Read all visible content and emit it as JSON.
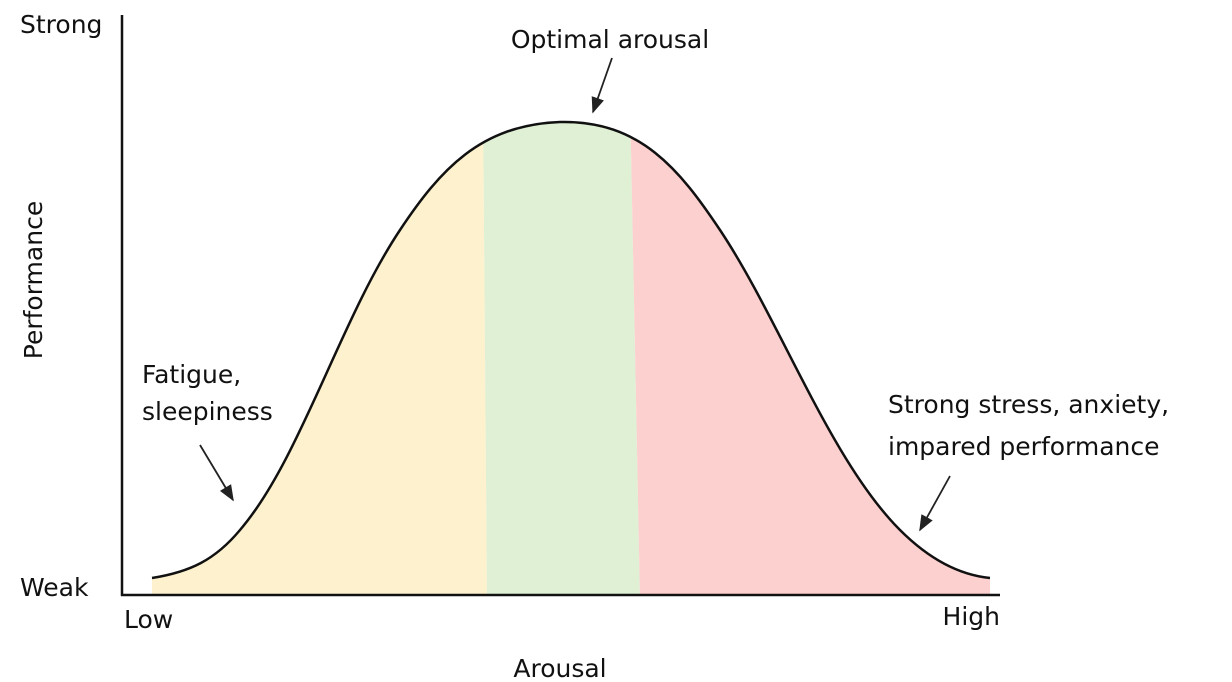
{
  "y_axis": {
    "title": "Performance",
    "top_label": "Strong",
    "bottom_label": "Weak"
  },
  "x_axis": {
    "title": "Arousal",
    "left_label": "Low",
    "right_label": "High"
  },
  "annotations": [
    {
      "lines": [
        "Optimal arousal"
      ]
    },
    {
      "lines": [
        "Fatigue,",
        "sleepiness"
      ]
    },
    {
      "lines": [
        "Strong stress, anxiety,",
        "impared performance"
      ]
    }
  ]
}
